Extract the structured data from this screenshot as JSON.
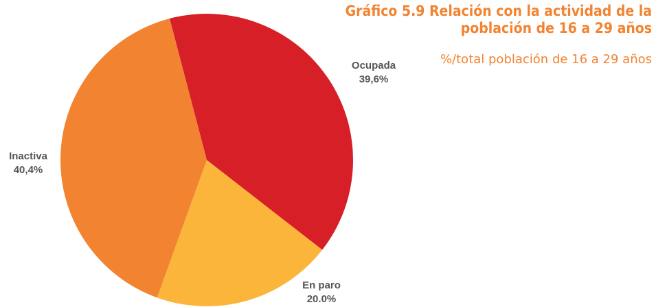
{
  "chart_data": {
    "type": "pie",
    "title": "Gráfico 5.9 Relación con la actividad de la población de 16 a 29 años",
    "subtitle": "%/total población de 16 a 29 años",
    "categories": [
      "Ocupada",
      "En paro",
      "Inactiva"
    ],
    "values": [
      39.6,
      20.0,
      40.4
    ],
    "value_labels": [
      "39,6%",
      "20.0%",
      "40,4%"
    ],
    "colors": [
      "#d71f27",
      "#fbb53a",
      "#f28330"
    ]
  }
}
